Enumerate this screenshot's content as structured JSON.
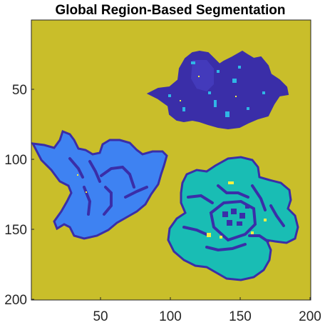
{
  "chart_data": {
    "type": "heatmap",
    "title": "Global Region-Based Segmentation",
    "xlabel": "",
    "ylabel": "",
    "xlim": [
      0.5,
      200.5
    ],
    "ylim": [
      0.5,
      200.5
    ],
    "y_direction": "reverse",
    "grid": false,
    "x_ticks": [
      50,
      100,
      150,
      200
    ],
    "y_ticks": [
      50,
      100,
      150,
      200
    ],
    "x_tick_labels": [
      "50",
      "100",
      "150",
      "200"
    ],
    "y_tick_labels": [
      "50",
      "100",
      "150",
      "200"
    ],
    "colors": {
      "background": "#C9BE2A",
      "outline": "#3A2EA8",
      "light_blue": "#3E82F2",
      "teal": "#19BDB4",
      "cyan_speck": "#2FB6E6",
      "yellow_speck": "#F5F043"
    },
    "regions": [
      {
        "name": "background",
        "color_key": "background"
      },
      {
        "name": "top-flower",
        "color_key": "outline",
        "x_range": [
          85,
          182
        ],
        "y_range": [
          22,
          75
        ]
      },
      {
        "name": "left-flower",
        "color_key": "light_blue",
        "x_range": [
          1,
          95
        ],
        "y_range": [
          85,
          155
        ]
      },
      {
        "name": "right-flower",
        "color_key": "teal",
        "x_range": [
          97,
          190
        ],
        "y_range": [
          107,
          187
        ]
      }
    ]
  }
}
